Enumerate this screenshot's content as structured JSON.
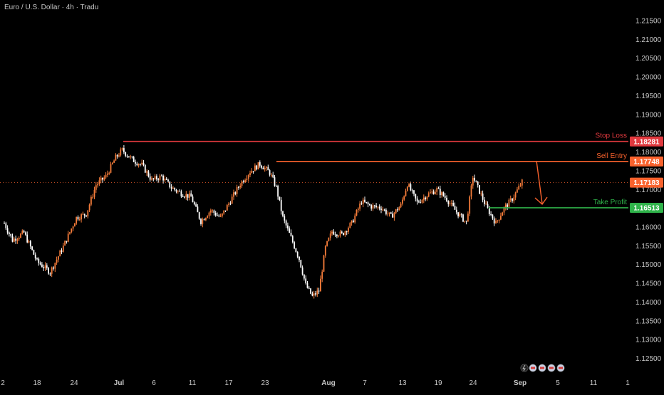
{
  "header": {
    "symbol": "Euro / U.S. Dollar · 4h · Tradu"
  },
  "colors": {
    "background": "#000000",
    "up": "#f57c3a",
    "down": "#ffffff",
    "stop_loss": "#e0393e",
    "sell_entry": "#f9622d",
    "take_profit": "#2fb34a",
    "axis_text": "#c8c8c8"
  },
  "chart_data": {
    "type": "candlestick",
    "price_axis": {
      "range": [
        1.1215,
        1.2205
      ],
      "ticks": [
        "1.21500",
        "1.21000",
        "1.20500",
        "1.20000",
        "1.19500",
        "1.19000",
        "1.18500",
        "1.18000",
        "1.17500",
        "1.17000",
        "1.16500",
        "1.16000",
        "1.15500",
        "1.15000",
        "1.14500",
        "1.14000",
        "1.13500",
        "1.13000",
        "1.12500"
      ]
    },
    "time_axis": {
      "labels": [
        "2",
        "18",
        "24",
        "Jul",
        "6",
        "11",
        "17",
        "23",
        "Aug",
        "7",
        "13",
        "19",
        "24",
        "Sep",
        "5",
        "11",
        "1"
      ],
      "bold_labels": [
        "Jul",
        "Aug",
        "Sep"
      ]
    },
    "levels": [
      {
        "id": "stop_loss",
        "label": "Stop Loss",
        "price": 1.18281,
        "price_label": "1.18281",
        "color": "#e0393e"
      },
      {
        "id": "sell_entry",
        "label": "Sell Entry",
        "price": 1.17748,
        "price_label": "1.17748",
        "color": "#f9622d"
      },
      {
        "id": "take_profit",
        "label": "Take Profit",
        "price": 1.16513,
        "price_label": "1.16513",
        "color": "#2fb34a"
      }
    ],
    "current_price": {
      "price": 1.17183,
      "label": "1.17183",
      "color": "#f9622d"
    },
    "close_path": [
      {
        "i": 0,
        "p": 1.161
      },
      {
        "i": 5,
        "p": 1.1565
      },
      {
        "i": 12,
        "p": 1.1585
      },
      {
        "i": 20,
        "p": 1.1508
      },
      {
        "i": 28,
        "p": 1.148
      },
      {
        "i": 36,
        "p": 1.1548
      },
      {
        "i": 44,
        "p": 1.1625
      },
      {
        "i": 50,
        "p": 1.1635
      },
      {
        "i": 56,
        "p": 1.1712
      },
      {
        "i": 62,
        "p": 1.1735
      },
      {
        "i": 68,
        "p": 1.1785
      },
      {
        "i": 72,
        "p": 1.1805
      },
      {
        "i": 78,
        "p": 1.178
      },
      {
        "i": 84,
        "p": 1.1765
      },
      {
        "i": 90,
        "p": 1.1725
      },
      {
        "i": 96,
        "p": 1.1735
      },
      {
        "i": 102,
        "p": 1.1705
      },
      {
        "i": 108,
        "p": 1.169
      },
      {
        "i": 114,
        "p": 1.168
      },
      {
        "i": 120,
        "p": 1.1615
      },
      {
        "i": 126,
        "p": 1.1645
      },
      {
        "i": 132,
        "p": 1.1625
      },
      {
        "i": 138,
        "p": 1.167
      },
      {
        "i": 144,
        "p": 1.1715
      },
      {
        "i": 150,
        "p": 1.1748
      },
      {
        "i": 156,
        "p": 1.1768
      },
      {
        "i": 162,
        "p": 1.1745
      },
      {
        "i": 166,
        "p": 1.1705
      },
      {
        "i": 170,
        "p": 1.1625
      },
      {
        "i": 176,
        "p": 1.156
      },
      {
        "i": 180,
        "p": 1.1515
      },
      {
        "i": 184,
        "p": 1.1445
      },
      {
        "i": 188,
        "p": 1.1415
      },
      {
        "i": 192,
        "p": 1.143
      },
      {
        "i": 196,
        "p": 1.1545
      },
      {
        "i": 200,
        "p": 1.1588
      },
      {
        "i": 206,
        "p": 1.158
      },
      {
        "i": 212,
        "p": 1.161
      },
      {
        "i": 218,
        "p": 1.1668
      },
      {
        "i": 224,
        "p": 1.1655
      },
      {
        "i": 230,
        "p": 1.1652
      },
      {
        "i": 236,
        "p": 1.1628
      },
      {
        "i": 242,
        "p": 1.1658
      },
      {
        "i": 246,
        "p": 1.1715
      },
      {
        "i": 252,
        "p": 1.1665
      },
      {
        "i": 258,
        "p": 1.1685
      },
      {
        "i": 264,
        "p": 1.17
      },
      {
        "i": 270,
        "p": 1.1675
      },
      {
        "i": 276,
        "p": 1.164
      },
      {
        "i": 282,
        "p": 1.1612
      },
      {
        "i": 286,
        "p": 1.1735
      },
      {
        "i": 290,
        "p": 1.1695
      },
      {
        "i": 294,
        "p": 1.1655
      },
      {
        "i": 300,
        "p": 1.161
      },
      {
        "i": 305,
        "p": 1.165
      },
      {
        "i": 310,
        "p": 1.1675
      },
      {
        "i": 316,
        "p": 1.172
      }
    ]
  }
}
